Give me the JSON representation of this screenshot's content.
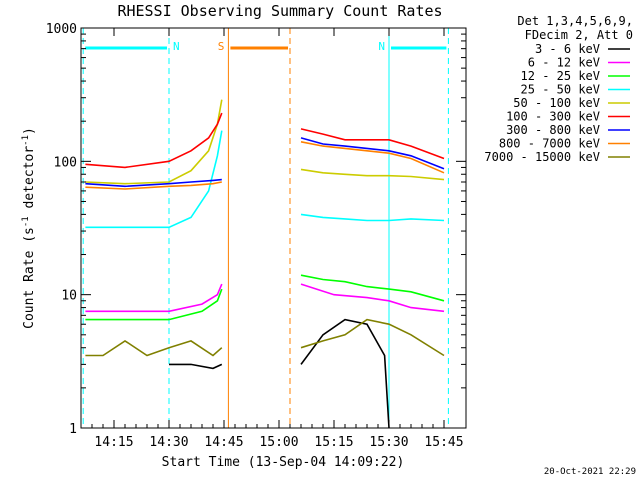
{
  "chart_data": {
    "type": "line",
    "title": "RHESSI Observing Summary Count Rates",
    "xlabel": "Start Time (13-Sep-04 14:09:22)",
    "ylabel_main": "Count Rate (s",
    "ylabel_sup1": "-1",
    "ylabel_mid": " detector",
    "ylabel_sup2": "-1",
    "ylabel_end": ")",
    "y_scale": "log",
    "ylim": [
      1,
      1000
    ],
    "xlim_minutes": [
      14.1,
      15.85
    ],
    "x_ticks": [
      {
        "label": "14:15",
        "at": 14.25
      },
      {
        "label": "14:30",
        "at": 14.5
      },
      {
        "label": "14:45",
        "at": 14.75
      },
      {
        "label": "15:00",
        "at": 15.0
      },
      {
        "label": "15:15",
        "at": 15.25
      },
      {
        "label": "15:30",
        "at": 15.5
      },
      {
        "label": "15:45",
        "at": 15.75
      }
    ],
    "y_ticks": [
      {
        "label": "1",
        "value": 1
      },
      {
        "label": "10",
        "value": 10
      },
      {
        "label": "100",
        "value": 100
      },
      {
        "label": "1000",
        "value": 1000
      }
    ],
    "legend_header": [
      "Det 1,3,4,5,6,9,",
      "FDecim 2, Att 0"
    ],
    "legend_placement": "right",
    "series": [
      {
        "name": "3 - 6 keV",
        "color": "#000000",
        "segments": [
          {
            "x": [
              14.5,
              14.6,
              14.7,
              14.74
            ],
            "y": [
              3.0,
              3.0,
              2.8,
              3.0
            ]
          },
          {
            "x": [
              15.1,
              15.2,
              15.3,
              15.4,
              15.48,
              15.5
            ],
            "y": [
              3.0,
              5.0,
              6.5,
              6.0,
              3.5,
              1.0
            ]
          }
        ]
      },
      {
        "name": "6 - 12 keV",
        "color": "#ff00ff",
        "segments": [
          {
            "x": [
              14.12,
              14.3,
              14.5,
              14.65,
              14.72,
              14.74
            ],
            "y": [
              7.5,
              7.5,
              7.5,
              8.5,
              10,
              12
            ]
          },
          {
            "x": [
              15.1,
              15.25,
              15.4,
              15.5,
              15.6,
              15.75
            ],
            "y": [
              12,
              10,
              9.5,
              9,
              8,
              7.5
            ]
          }
        ]
      },
      {
        "name": "12 - 25 keV",
        "color": "#00ff00",
        "segments": [
          {
            "x": [
              14.12,
              14.3,
              14.5,
              14.65,
              14.72,
              14.74
            ],
            "y": [
              6.5,
              6.5,
              6.5,
              7.5,
              9,
              11
            ]
          },
          {
            "x": [
              15.1,
              15.2,
              15.3,
              15.4,
              15.5,
              15.6,
              15.75
            ],
            "y": [
              14,
              13,
              12.5,
              11.5,
              11,
              10.5,
              9
            ]
          }
        ]
      },
      {
        "name": "25 - 50 keV",
        "color": "#00ffff",
        "segments": [
          {
            "x": [
              14.12,
              14.3,
              14.5,
              14.6,
              14.68,
              14.72,
              14.74
            ],
            "y": [
              32,
              32,
              32,
              38,
              60,
              110,
              170
            ]
          },
          {
            "x": [
              15.1,
              15.2,
              15.3,
              15.4,
              15.5,
              15.6,
              15.75
            ],
            "y": [
              40,
              38,
              37,
              36,
              36,
              37,
              36
            ]
          }
        ]
      },
      {
        "name": "50 - 100 keV",
        "color": "#cccc00",
        "segments": [
          {
            "x": [
              14.12,
              14.3,
              14.5,
              14.6,
              14.68,
              14.72,
              14.74
            ],
            "y": [
              70,
              68,
              70,
              85,
              120,
              190,
              290
            ]
          },
          {
            "x": [
              15.1,
              15.2,
              15.3,
              15.4,
              15.5,
              15.6,
              15.75
            ],
            "y": [
              87,
              82,
              80,
              78,
              78,
              77,
              73
            ]
          }
        ]
      },
      {
        "name": "100 - 300 keV",
        "color": "#ff0000",
        "segments": [
          {
            "x": [
              14.12,
              14.3,
              14.5,
              14.6,
              14.68,
              14.72,
              14.74
            ],
            "y": [
              95,
              90,
              100,
              120,
              150,
              190,
              230
            ]
          },
          {
            "x": [
              15.1,
              15.2,
              15.3,
              15.4,
              15.5,
              15.6,
              15.75
            ],
            "y": [
              175,
              160,
              145,
              145,
              145,
              130,
              105
            ]
          }
        ]
      },
      {
        "name": "300 - 800 keV",
        "color": "#0000ff",
        "segments": [
          {
            "x": [
              14.12,
              14.3,
              14.5,
              14.6,
              14.7,
              14.74
            ],
            "y": [
              68,
              65,
              68,
              70,
              72,
              73
            ]
          },
          {
            "x": [
              15.1,
              15.2,
              15.3,
              15.4,
              15.5,
              15.6,
              15.75
            ],
            "y": [
              150,
              135,
              130,
              125,
              120,
              110,
              88
            ]
          }
        ]
      },
      {
        "name": "800 - 7000 keV",
        "color": "#ff8000",
        "segments": [
          {
            "x": [
              14.12,
              14.3,
              14.5,
              14.6,
              14.7,
              14.74
            ],
            "y": [
              64,
              62,
              65,
              66,
              68,
              70
            ]
          },
          {
            "x": [
              15.1,
              15.2,
              15.3,
              15.4,
              15.5,
              15.6,
              15.75
            ],
            "y": [
              140,
              130,
              125,
              120,
              115,
              105,
              82
            ]
          }
        ]
      },
      {
        "name": "7000 - 15000 keV",
        "color": "#808000",
        "segments": [
          {
            "x": [
              14.12,
              14.2,
              14.3,
              14.4,
              14.5,
              14.6,
              14.7,
              14.74
            ],
            "y": [
              3.5,
              3.5,
              4.5,
              3.5,
              4.0,
              4.5,
              3.5,
              4.0
            ]
          },
          {
            "x": [
              15.1,
              15.2,
              15.3,
              15.4,
              15.5,
              15.6,
              15.75
            ],
            "y": [
              4.0,
              4.5,
              5.0,
              6.5,
              6.0,
              5.0,
              3.5
            ]
          }
        ]
      }
    ],
    "annotations": [
      {
        "label": "N",
        "color": "#00ffff",
        "bar": [
          14.11,
          14.5
        ],
        "dashed_lines": [
          14.11,
          14.5
        ]
      },
      {
        "label": "N",
        "color": "#00ffff",
        "bar": [
          15.5,
          15.77
        ],
        "solid_line": 15.5,
        "dashed_lines": [
          15.77
        ]
      },
      {
        "label": "S",
        "color": "#ff8000",
        "bar": [
          14.77,
          15.05
        ],
        "solid_line": 14.77,
        "dashed_lines": [
          15.05
        ]
      }
    ],
    "footer": "20-Oct-2021 22:29"
  }
}
